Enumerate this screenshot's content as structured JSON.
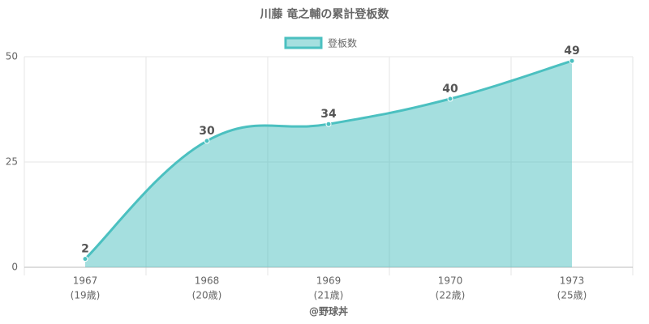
{
  "chart_data": {
    "type": "line",
    "title": "川藤 竜之輔の累計登板数",
    "categories": [
      [
        "1967",
        "(19歳)"
      ],
      [
        "1968",
        "(20歳)"
      ],
      [
        "1969",
        "(21歳)"
      ],
      [
        "1970",
        "(22歳)"
      ],
      [
        "1973",
        "(25歳)"
      ]
    ],
    "series": [
      {
        "name": "登板数",
        "color": "#4bc0c0",
        "values": [
          2,
          30,
          34,
          40,
          49
        ]
      }
    ],
    "area": true,
    "ylim": [
      0,
      50
    ],
    "yticks": [
      0,
      25,
      50
    ],
    "grid": true,
    "legend": "top",
    "x_label": "@野球丼"
  }
}
